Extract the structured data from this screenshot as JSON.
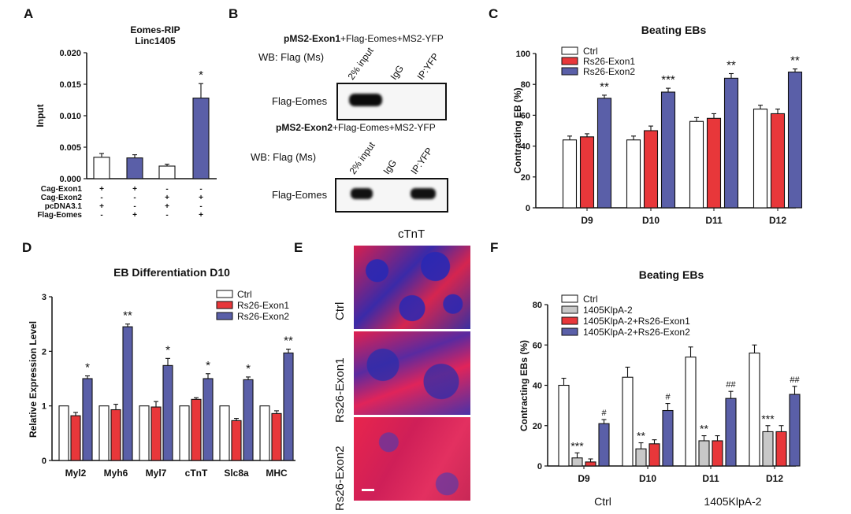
{
  "panels": {
    "A": {
      "letter": "A"
    },
    "B": {
      "letter": "B"
    },
    "C": {
      "letter": "C"
    },
    "D": {
      "letter": "D"
    },
    "E": {
      "letter": "E"
    },
    "F": {
      "letter": "F"
    }
  },
  "colors": {
    "ctrl": "#ffffff",
    "exon1": "#e8373a",
    "exon2": "#5a5fa8",
    "klpa": "#c8c8c8"
  },
  "blot": {
    "title1_bold": "pMS2-Exon1",
    "title1_rest": "+Flag-Eomes+MS2-YFP",
    "title2_bold": "pMS2-Exon2",
    "title2_rest": "+Flag-Eomes+MS2-YFP",
    "wb_label1": "WB: Flag (Ms)",
    "wb_label2": "WB: Flag (Ms)",
    "lanes": [
      "2% input",
      "IgG",
      "IP:YFP"
    ],
    "band_label1": "Flag-Eomes",
    "band_label2": "Flag-Eomes"
  },
  "micro": {
    "title": "cTnT",
    "rows": [
      "Ctrl",
      "Rs26-Exon1",
      "Rs26-Exon2"
    ]
  },
  "chart_data": [
    {
      "id": "A",
      "type": "bar",
      "title": "Eomes-RIP\nLinc1405",
      "ylabel": "Input",
      "ylim": [
        0,
        0.02
      ],
      "yticks": [
        "0.000",
        "0.005",
        "0.010",
        "0.015",
        "0.020"
      ],
      "values": [
        0.0034,
        0.0033,
        0.002,
        0.0128
      ],
      "errors": [
        0.0006,
        0.0005,
        0.0003,
        0.0023
      ],
      "colors": [
        "#ffffff",
        "#5a5fa8",
        "#ffffff",
        "#5a5fa8"
      ],
      "significance": [
        "",
        "",
        "",
        "*"
      ],
      "condition_rows": [
        {
          "label": "Cag-Exon1",
          "signs": [
            "+",
            "+",
            "-",
            "-"
          ]
        },
        {
          "label": "Cag-Exon2",
          "signs": [
            "-",
            "-",
            "+",
            "+"
          ]
        },
        {
          "label": "pcDNA3.1",
          "signs": [
            "+",
            "-",
            "+",
            "-"
          ]
        },
        {
          "label": "Flag-Eomes",
          "signs": [
            "-",
            "+",
            "-",
            "+"
          ]
        }
      ]
    },
    {
      "id": "C",
      "type": "bar",
      "title": "Beating EBs",
      "ylabel": "Contracting  EB (%)",
      "ylim": [
        0,
        100
      ],
      "yticks": [
        "0",
        "20",
        "40",
        "60",
        "80",
        "100"
      ],
      "categories": [
        "D9",
        "D10",
        "D11",
        "D12"
      ],
      "series": [
        {
          "name": "Ctrl",
          "color": "#ffffff",
          "values": [
            44,
            44,
            56,
            64
          ],
          "errors": [
            2.5,
            2.5,
            2.5,
            2.5
          ]
        },
        {
          "name": "Rs26-Exon1",
          "color": "#e8373a",
          "values": [
            46,
            50,
            58,
            61
          ],
          "errors": [
            2,
            3,
            3,
            3
          ]
        },
        {
          "name": "Rs26-Exon2",
          "color": "#5a5fa8",
          "values": [
            71,
            75,
            84,
            88
          ],
          "errors": [
            2,
            2.5,
            3,
            2
          ]
        }
      ],
      "significance": [
        "**",
        "***",
        "**",
        "**"
      ],
      "legend": "top-left"
    },
    {
      "id": "D",
      "type": "bar",
      "title": "EB Differentiation D10",
      "ylabel": "Relative Expression Level",
      "ylim": [
        0,
        3
      ],
      "yticks": [
        "0",
        "1",
        "2",
        "3"
      ],
      "categories": [
        "Myl2",
        "Myh6",
        "Myl7",
        "cTnT",
        "Slc8a",
        "MHC"
      ],
      "series": [
        {
          "name": "Ctrl",
          "color": "#ffffff",
          "values": [
            1,
            1,
            1,
            1,
            1,
            1
          ],
          "errors": [
            0,
            0,
            0,
            0,
            0,
            0
          ]
        },
        {
          "name": "Rs26-Exon1",
          "color": "#e8373a",
          "values": [
            0.82,
            0.93,
            0.98,
            1.12,
            0.73,
            0.86
          ],
          "errors": [
            0.06,
            0.1,
            0.1,
            0.03,
            0.04,
            0.05
          ]
        },
        {
          "name": "Rs26-Exon2",
          "color": "#5a5fa8",
          "values": [
            1.5,
            2.45,
            1.74,
            1.5,
            1.48,
            1.97
          ],
          "errors": [
            0.05,
            0.05,
            0.13,
            0.09,
            0.05,
            0.07
          ]
        }
      ],
      "significance": [
        "*",
        "**",
        "*",
        "*",
        "*",
        "**"
      ],
      "legend": "top-right"
    },
    {
      "id": "F",
      "type": "bar",
      "title": "Beating  EBs",
      "ylabel": "Contracting  EBs (%)",
      "ylim": [
        0,
        80
      ],
      "yticks": [
        "0",
        "20",
        "40",
        "60",
        "80"
      ],
      "categories": [
        "D9",
        "D10",
        "D11",
        "D12"
      ],
      "series": [
        {
          "name": "Ctrl",
          "color": "#ffffff",
          "values": [
            40,
            44,
            54,
            56
          ],
          "errors": [
            3.5,
            5,
            5,
            4
          ]
        },
        {
          "name": "1405KlpA-2",
          "color": "#c8c8c8",
          "values": [
            4,
            8.5,
            12.5,
            17
          ],
          "errors": [
            2.5,
            3,
            2.5,
            3
          ]
        },
        {
          "name": "1405KlpA-2+Rs26-Exon1",
          "color": "#e8373a",
          "values": [
            2,
            11,
            12.5,
            17
          ],
          "errors": [
            1.5,
            2,
            2.5,
            3
          ]
        },
        {
          "name": "1405KlpA-2+Rs26-Exon2",
          "color": "#5a5fa8",
          "values": [
            21,
            27.5,
            33.5,
            35.5
          ],
          "errors": [
            2,
            3.5,
            3.5,
            4
          ]
        }
      ],
      "klpa_significance": [
        "***",
        "**",
        "**",
        "***"
      ],
      "exon2_significance": [
        "#",
        "#",
        "##",
        "##"
      ],
      "legend": "top-left",
      "group_labels": [
        "Ctrl",
        "1405KlpA-2"
      ]
    }
  ]
}
